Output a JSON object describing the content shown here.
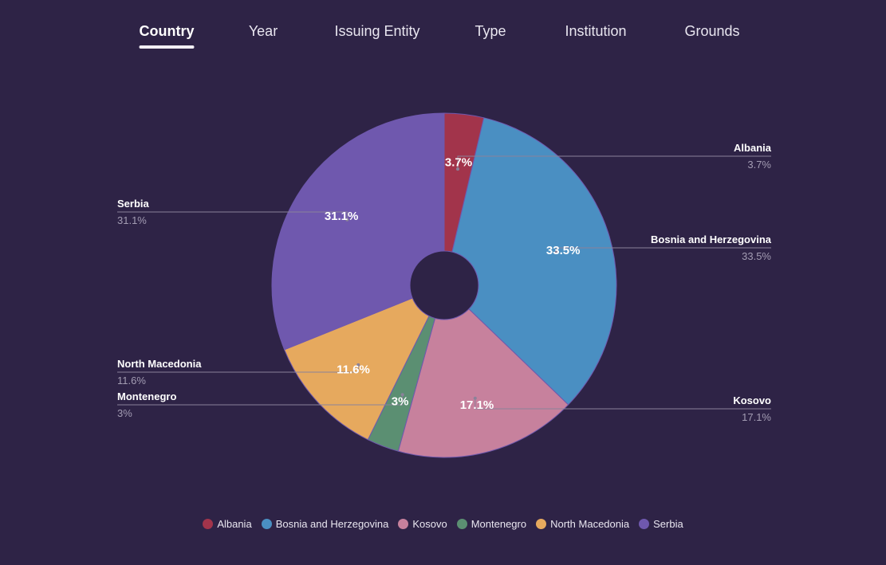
{
  "tabs": [
    {
      "label": "Country",
      "active": true
    },
    {
      "label": "Year",
      "active": false
    },
    {
      "label": "Issuing Entity",
      "active": false
    },
    {
      "label": "Type",
      "active": false
    },
    {
      "label": "Institution",
      "active": false
    },
    {
      "label": "Grounds",
      "active": false
    }
  ],
  "chart_data": {
    "type": "pie",
    "donut": true,
    "legend_position": "bottom",
    "slices": [
      {
        "name": "Albania",
        "value": 3.7,
        "label": "3.7%",
        "color": "#a2344b"
      },
      {
        "name": "Bosnia and Herzegovina",
        "value": 33.5,
        "label": "33.5%",
        "color": "#4a8fc2"
      },
      {
        "name": "Kosovo",
        "value": 17.1,
        "label": "17.1%",
        "color": "#c7819d"
      },
      {
        "name": "Montenegro",
        "value": 3,
        "label": "3%",
        "color": "#5b8f72"
      },
      {
        "name": "North Macedonia",
        "value": 11.6,
        "label": "11.6%",
        "color": "#e6a95e"
      },
      {
        "name": "Serbia",
        "value": 31.1,
        "label": "31.1%",
        "color": "#6f58ae"
      }
    ]
  }
}
